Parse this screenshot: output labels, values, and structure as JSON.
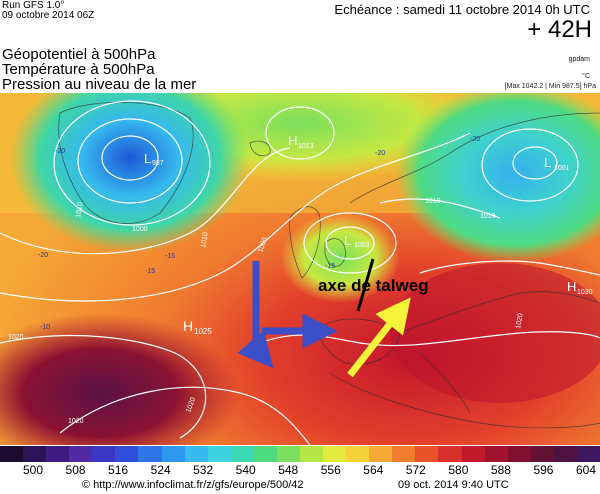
{
  "header": {
    "run": "Run GFS 1.0°",
    "run_date": "09 octobre 2014 06Z",
    "echeance": "Echéance : samedi 11 octobre 2014 0h UTC",
    "lead": "+ 42H",
    "title_lines": [
      "Géopotentiel à 500hPa",
      "Température à 500hPa",
      "Pression au niveau de la mer"
    ],
    "unit_gpdam": "gpdam",
    "unit_degc": "°C",
    "pressure_range": "[Max 1042.2 | Min 987.5] hPa"
  },
  "map": {
    "annotation": "axe de talweg",
    "centers": [
      {
        "type": "L",
        "value": "987"
      },
      {
        "type": "H",
        "value": "1013"
      },
      {
        "type": "L",
        "value": "1003"
      },
      {
        "type": "L",
        "value": "1001"
      },
      {
        "type": "H",
        "value": "1025"
      },
      {
        "type": "H",
        "value": "1030"
      }
    ],
    "temp_labels": [
      "-20",
      "-15",
      "-20",
      "-15",
      "-20",
      "-15",
      "-10",
      "-20"
    ],
    "isobar_labels": [
      "1010",
      "1000",
      "1010",
      "1000",
      "1020",
      "1020",
      "1020",
      "1020",
      "1010",
      "1010"
    ],
    "arrow_colors": {
      "flow_arrows": "#3c4ec8",
      "ridge_arrow": "#f6f43a",
      "trough_axis": "#000000"
    }
  },
  "scale": {
    "ticks": [
      "500",
      "508",
      "516",
      "524",
      "532",
      "540",
      "548",
      "556",
      "564",
      "572",
      "580",
      "588",
      "596",
      "604"
    ],
    "colors": [
      "#1a0c2e",
      "#2a1457",
      "#3d1d80",
      "#4f2aa4",
      "#3b36c4",
      "#2e4ed9",
      "#2f74e8",
      "#2d99ee",
      "#36baf0",
      "#3fd2e0",
      "#3bd9b1",
      "#4fdb82",
      "#7be05d",
      "#b4e646",
      "#e2ea3d",
      "#f4d23a",
      "#f6a836",
      "#f27d31",
      "#e8532c",
      "#d9302a",
      "#c11a2c",
      "#a0122e",
      "#80102f",
      "#621232",
      "#4c1240",
      "#3d1560"
    ]
  },
  "footer": {
    "copyright": "© http://www.infoclimat.fr/z/gfs/europe/500/42",
    "stamp": "09 oct. 2014  9:40 UTC"
  }
}
